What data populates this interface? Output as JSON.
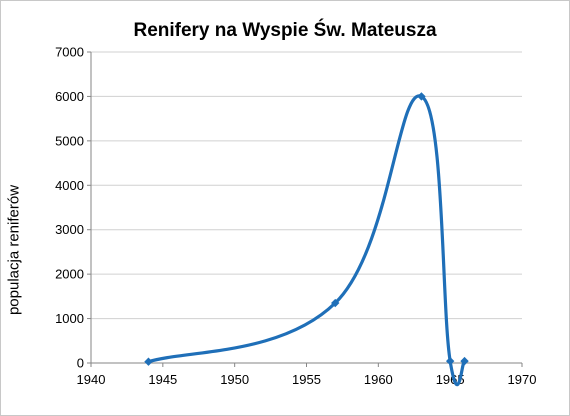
{
  "chart_data": {
    "type": "line",
    "title": "Renifery na Wyspie Św. Mateusza",
    "xlabel": "",
    "ylabel": "populacja reniferów",
    "xlim": [
      1940,
      1970
    ],
    "ylim": [
      0,
      7000
    ],
    "xticks": [
      "1940",
      "1945",
      "1950",
      "1955",
      "1960",
      "1965",
      "1970"
    ],
    "yticks": [
      "0",
      "1000",
      "2000",
      "3000",
      "4000",
      "5000",
      "6000",
      "7000"
    ],
    "grid": "horizontal",
    "legend": "none",
    "series": [
      {
        "color": "#1f6fb8",
        "marker": "diamond",
        "smooth": true,
        "x": [
          1944,
          1957,
          1963,
          1965,
          1966
        ],
        "y": [
          29,
          1350,
          6000,
          42,
          42
        ]
      }
    ]
  }
}
